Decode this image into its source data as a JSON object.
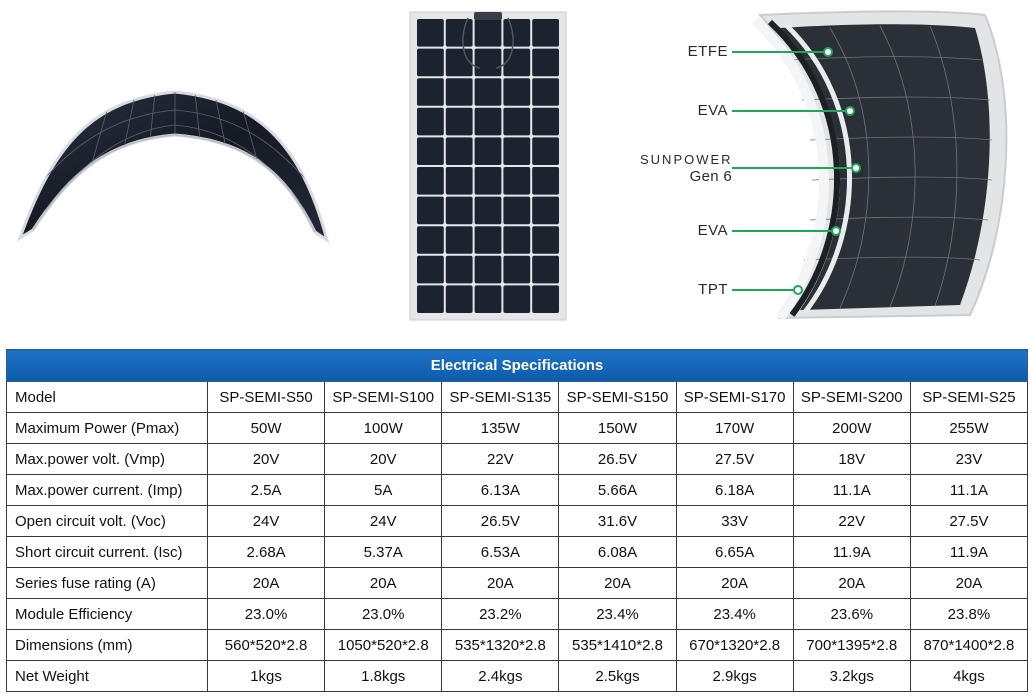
{
  "layer_labels": [
    {
      "name": "ETFE"
    },
    {
      "name": "EVA"
    },
    {
      "brand": "SUNPOWER",
      "sub": "Gen 6"
    },
    {
      "name": "EVA"
    },
    {
      "name": "TPT"
    }
  ],
  "table": {
    "title": "Electrical Specifications",
    "header": {
      "label": "Model",
      "values": [
        "SP-SEMI-S50",
        "SP-SEMI-S100",
        "SP-SEMI-S135",
        "SP-SEMI-S150",
        "SP-SEMI-S170",
        "SP-SEMI-S200",
        "SP-SEMI-S25"
      ]
    },
    "rows": [
      {
        "label": "Maximum Power (Pmax)",
        "values": [
          "50W",
          "100W",
          "135W",
          "150W",
          "170W",
          "200W",
          "255W"
        ]
      },
      {
        "label": "Max.power volt. (Vmp)",
        "values": [
          "20V",
          "20V",
          "22V",
          "26.5V",
          "27.5V",
          "18V",
          "23V"
        ]
      },
      {
        "label": "Max.power current. (Imp)",
        "values": [
          "2.5A",
          "5A",
          "6.13A",
          "5.66A",
          "6.18A",
          "11.1A",
          "11.1A"
        ]
      },
      {
        "label": "Open circuit volt. (Voc)",
        "values": [
          "24V",
          "24V",
          "26.5V",
          "31.6V",
          "33V",
          "22V",
          "27.5V"
        ]
      },
      {
        "label": "Short circuit current. (Isc)",
        "values": [
          "2.68A",
          "5.37A",
          "6.53A",
          "6.08A",
          "6.65A",
          "11.9A",
          "11.9A"
        ]
      },
      {
        "label": "Series fuse rating (A)",
        "values": [
          "20A",
          "20A",
          "20A",
          "20A",
          "20A",
          "20A",
          "20A"
        ]
      },
      {
        "label": "Module Efficiency",
        "values": [
          "23.0%",
          "23.0%",
          "23.2%",
          "23.4%",
          "23.4%",
          "23.6%",
          "23.8%"
        ]
      },
      {
        "label": "Dimensions (mm)",
        "values": [
          "560*520*2.8",
          "1050*520*2.8",
          "535*1320*2.8",
          "535*1410*2.8",
          "670*1320*2.8",
          "700*1395*2.8",
          "870*1400*2.8"
        ]
      },
      {
        "label": "Net Weight",
        "values": [
          "1kgs",
          "1.8kgs",
          "2.4kgs",
          "2.5kgs",
          "2.9kgs",
          "3.2kgs",
          "4kgs"
        ]
      }
    ]
  },
  "colors": {
    "header_blue": "#1565b9",
    "cell_dark": "#1b2330",
    "accent_green": "#1fa65a",
    "frame_gray": "#c9cdd1"
  }
}
